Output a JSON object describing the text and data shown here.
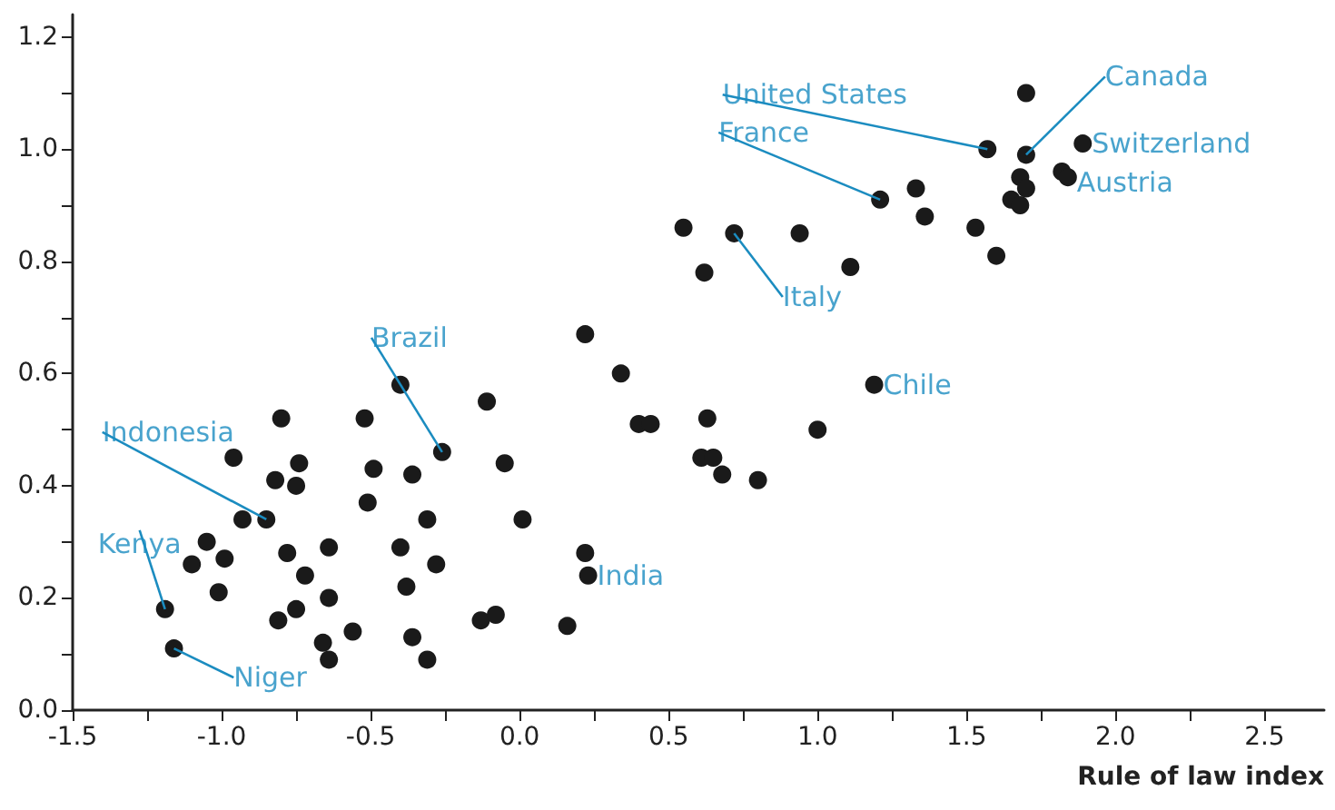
{
  "chart_data": {
    "type": "scatter",
    "xlabel": "Rule of law index",
    "color": "#1a1a1a",
    "marker": "circle",
    "x": [
      -1.19,
      -1.16,
      -1.1,
      -1.05,
      -0.99,
      -1.01,
      -0.96,
      -0.93,
      -0.85,
      -0.8,
      -0.82,
      -0.75,
      -0.74,
      -0.78,
      -0.72,
      -0.81,
      -0.75,
      -0.64,
      -0.64,
      -0.66,
      -0.64,
      -0.56,
      -0.52,
      -0.49,
      -0.51,
      -0.4,
      -0.36,
      -0.4,
      -0.38,
      -0.31,
      -0.28,
      -0.36,
      -0.31,
      -0.26,
      -0.11,
      -0.13,
      -0.08,
      -0.05,
      0.01,
      0.22,
      0.34,
      0.4,
      0.44,
      0.63,
      0.61,
      0.65,
      0.68,
      0.8,
      1.0,
      1.19,
      0.22,
      0.23,
      0.16,
      0.55,
      0.62,
      0.72,
      0.94,
      1.11,
      1.21,
      1.33,
      1.36,
      1.53,
      1.6,
      1.57,
      1.7,
      1.7,
      1.68,
      1.7,
      1.65,
      1.68,
      1.89,
      1.82,
      1.84
    ],
    "values": [
      0.18,
      0.11,
      0.26,
      0.3,
      0.27,
      0.21,
      0.45,
      0.34,
      0.34,
      0.52,
      0.41,
      0.4,
      0.44,
      0.28,
      0.24,
      0.16,
      0.18,
      0.29,
      0.2,
      0.12,
      0.09,
      0.14,
      0.52,
      0.43,
      0.37,
      0.58,
      0.42,
      0.29,
      0.22,
      0.34,
      0.26,
      0.13,
      0.09,
      0.46,
      0.55,
      0.16,
      0.17,
      0.44,
      0.34,
      0.67,
      0.6,
      0.51,
      0.51,
      0.52,
      0.45,
      0.45,
      0.42,
      0.41,
      0.5,
      0.58,
      0.28,
      0.24,
      0.15,
      0.86,
      0.78,
      0.85,
      0.85,
      0.79,
      0.91,
      0.93,
      0.88,
      0.86,
      0.81,
      1.0,
      1.1,
      0.99,
      0.95,
      0.93,
      0.91,
      0.9,
      1.01,
      0.96,
      0.95
    ],
    "xlim": [
      -1.5,
      2.7
    ],
    "ylim": [
      0,
      1.24
    ],
    "xticks": [
      {
        "value": -1.5,
        "label": "-1.5"
      },
      {
        "value": -1.25,
        "label": null
      },
      {
        "value": -1.0,
        "label": "-1.0"
      },
      {
        "value": -0.75,
        "label": null
      },
      {
        "value": -0.5,
        "label": "-0.5"
      },
      {
        "value": -0.25,
        "label": null
      },
      {
        "value": 0,
        "label": "0.0"
      },
      {
        "value": 0.25,
        "label": null
      },
      {
        "value": 0.5,
        "label": "0.5"
      },
      {
        "value": 0.75,
        "label": null
      },
      {
        "value": 1.0,
        "label": "1.0"
      },
      {
        "value": 1.25,
        "label": null
      },
      {
        "value": 1.5,
        "label": "1.5"
      },
      {
        "value": 1.75,
        "label": null
      },
      {
        "value": 2.0,
        "label": "2.0"
      },
      {
        "value": 2.25,
        "label": null
      },
      {
        "value": 2.5,
        "label": "2.5"
      }
    ],
    "yticks": [
      {
        "value": 0,
        "label": "0.0"
      },
      {
        "value": 0.1,
        "label": null
      },
      {
        "value": 0.2,
        "label": "0.2"
      },
      {
        "value": 0.3,
        "label": null
      },
      {
        "value": 0.4,
        "label": "0.4"
      },
      {
        "value": 0.5,
        "label": null
      },
      {
        "value": 0.6,
        "label": "0.6"
      },
      {
        "value": 0.7,
        "label": null
      },
      {
        "value": 0.8,
        "label": "0.8"
      },
      {
        "value": 0.9,
        "label": null
      },
      {
        "value": 1.0,
        "label": "1.0"
      },
      {
        "value": 1.1,
        "label": null
      },
      {
        "value": 1.2,
        "label": "1.2"
      }
    ],
    "annotations": [
      {
        "text": "United States",
        "x": 1.57,
        "y": 1.0
      },
      {
        "text": "Canada",
        "x": 1.7,
        "y": 0.99
      },
      {
        "text": "France",
        "x": 1.21,
        "y": 0.91
      },
      {
        "text": "Switzerland",
        "x": 1.89,
        "y": 1.01
      },
      {
        "text": "Austria",
        "x": 1.84,
        "y": 0.95
      },
      {
        "text": "Italy",
        "x": 0.72,
        "y": 0.85
      },
      {
        "text": "Brazil",
        "x": -0.26,
        "y": 0.46
      },
      {
        "text": "Chile",
        "x": 1.19,
        "y": 0.58
      },
      {
        "text": "Indonesia",
        "x": -0.85,
        "y": 0.34
      },
      {
        "text": "India",
        "x": 0.23,
        "y": 0.24
      },
      {
        "text": "Kenya",
        "x": -1.19,
        "y": 0.18
      },
      {
        "text": "Niger",
        "x": -1.16,
        "y": 0.11
      }
    ]
  }
}
